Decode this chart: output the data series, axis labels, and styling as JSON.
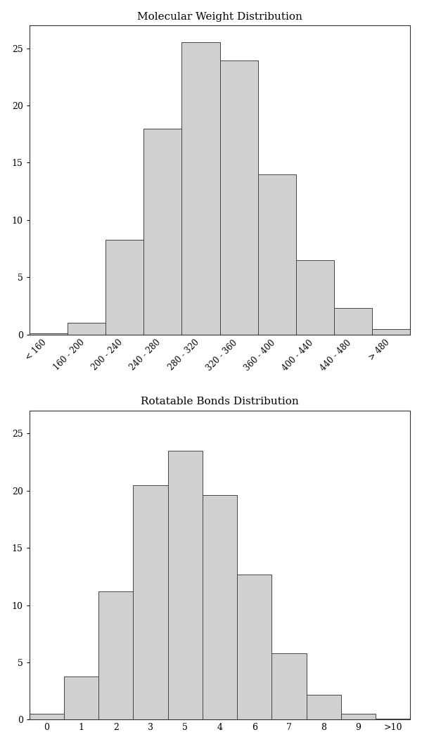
{
  "chart1": {
    "title": "Molecular Weight Distribution",
    "categories": [
      "< 160",
      "160 - 200",
      "200 - 240",
      "240 - 280",
      "280 - 320",
      "320 - 360",
      "360 - 400",
      "400 - 440",
      "440 - 480",
      "> 480"
    ],
    "values": [
      0.1,
      1.0,
      8.3,
      18.0,
      25.5,
      23.9,
      14.0,
      6.5,
      2.3,
      0.5
    ],
    "bar_color": "#d0d0d0",
    "edge_color": "#444444",
    "ylim": [
      0,
      27
    ],
    "yticks": [
      0,
      5,
      10,
      15,
      20,
      25
    ]
  },
  "chart2": {
    "title": "Rotatable Bonds Distribution",
    "categories": [
      "0",
      "1",
      "2",
      "3",
      "5",
      "4",
      "6",
      "7",
      "8",
      "9",
      ">10"
    ],
    "values": [
      0.5,
      3.8,
      11.2,
      20.5,
      23.5,
      19.6,
      12.7,
      5.8,
      2.2,
      0.5,
      0.1
    ],
    "bar_color": "#d0d0d0",
    "edge_color": "#444444",
    "ylim": [
      0,
      27
    ],
    "yticks": [
      0,
      5,
      10,
      15,
      20,
      25
    ]
  },
  "background_color": "#ffffff",
  "figure_size": [
    6.0,
    10.58
  ]
}
